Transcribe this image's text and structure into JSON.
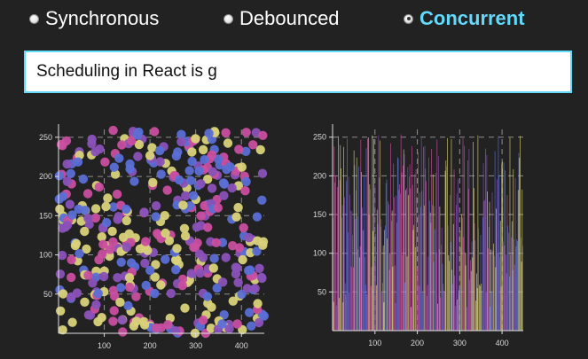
{
  "modes": [
    {
      "label": "Synchronous",
      "checked": false
    },
    {
      "label": "Debounced",
      "checked": false
    },
    {
      "label": "Concurrent",
      "checked": true
    }
  ],
  "input": {
    "value": "Scheduling in React is g"
  },
  "colors": {
    "accent": "#61dafb",
    "points": [
      "#5b6fd6",
      "#c94fa0",
      "#d9d27a",
      "#8a52b8"
    ]
  },
  "chart_data": [
    {
      "type": "scatter",
      "xlim": [
        0,
        450
      ],
      "ylim": [
        0,
        260
      ],
      "xticks": [
        100,
        200,
        300,
        400
      ],
      "yticks": [
        50,
        100,
        150,
        200,
        250
      ],
      "grid": true,
      "point_count": 420
    },
    {
      "type": "bar",
      "xlim": [
        0,
        450
      ],
      "ylim": [
        0,
        260
      ],
      "xticks": [
        100,
        200,
        300,
        400
      ],
      "yticks": [
        50,
        100,
        150,
        200,
        250
      ],
      "grid": true,
      "bar_count": 280
    }
  ]
}
